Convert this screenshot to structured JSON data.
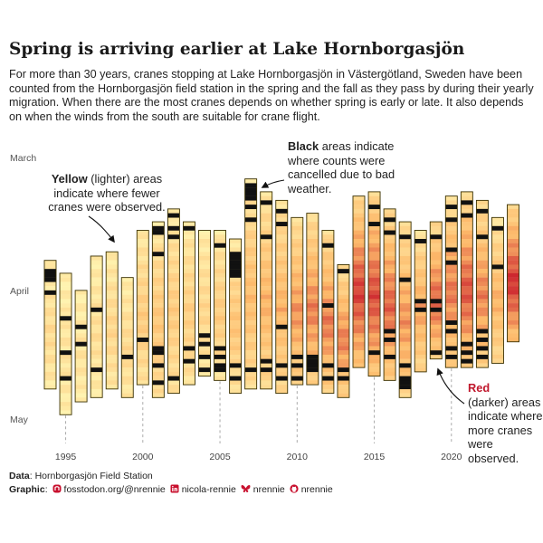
{
  "title": "Spring is arriving earlier at Lake Hornborgasjön",
  "subtitle": "For more than 30 years, cranes stopping at Lake Hornborgasjön in Västergötland, Sweden have been counted from the Hornborgasjön field station in the spring and the fall as they pass by during their yearly migration. When there are the most cranes depends on whether spring is early or late. It also depends on when the winds from the south are suitable for crane flight.",
  "annotations": {
    "yellow": {
      "bold": "Yellow",
      "text": " (lighter) areas indicate where fewer cranes were observed."
    },
    "black": {
      "bold": "Black",
      "text": " areas indicate where counts were cancelled due to bad weather."
    },
    "red": {
      "bold": "Red",
      "text": " (darker) areas indicate where more cranes were observed."
    }
  },
  "footer": {
    "data_key": "Data",
    "data_value": ": Hornborgasjön Field Station",
    "graphic_key": "Graphic",
    "mastodon": "fosstodon.org/@nrennie",
    "linkedin": "nicola-rennie",
    "bluesky": "nrennie",
    "github": "nrennie"
  },
  "colors": {
    "light": "#fff3b0",
    "mid": "#fdb96a",
    "dark": "#c91a2a",
    "cancelled": "#111111",
    "outline": "#3a3000",
    "red_label": "#c0182d",
    "footer_icons": "#c8102e"
  },
  "chart_data": {
    "type": "heatmap",
    "x_ticks": [
      1995,
      2000,
      2005,
      2010,
      2015,
      2020
    ],
    "y_ticks": [
      "March",
      "April",
      "May"
    ],
    "y_axis": "day of year, March (top) to May (bottom)",
    "value_scale": "relative crane count: 0 = fewer (yellow), 1 = more (red); cancelled = black",
    "series": [
      {
        "year": 1994,
        "start": "Mar 25",
        "end": "Apr 23",
        "intensity": 0.18,
        "cancelled": [
          "Mar 27",
          "Mar 28",
          "Mar 29",
          "Apr 1"
        ]
      },
      {
        "year": 1995,
        "start": "Mar 28",
        "end": "Apr 29",
        "intensity": 0.12,
        "cancelled": [
          "Apr 7",
          "Apr 15",
          "Apr 21"
        ]
      },
      {
        "year": 1996,
        "start": "Apr 1",
        "end": "Apr 26",
        "intensity": 0.12,
        "cancelled": [
          "Apr 9",
          "Apr 13"
        ]
      },
      {
        "year": 1997,
        "start": "Mar 24",
        "end": "Apr 25",
        "intensity": 0.16,
        "cancelled": [
          "Apr 5",
          "Apr 19"
        ]
      },
      {
        "year": 1998,
        "start": "Mar 23",
        "end": "Apr 23",
        "intensity": 0.22,
        "cancelled": []
      },
      {
        "year": 1999,
        "start": "Mar 29",
        "end": "Apr 25",
        "intensity": 0.2,
        "cancelled": [
          "Apr 16"
        ]
      },
      {
        "year": 2000,
        "start": "Mar 18",
        "end": "Apr 22",
        "intensity": 0.3,
        "cancelled": [
          "Apr 12"
        ]
      },
      {
        "year": 2001,
        "start": "Mar 16",
        "end": "Apr 25",
        "intensity": 0.33,
        "cancelled": [
          "Mar 17",
          "Mar 18",
          "Mar 23",
          "Apr 14",
          "Apr 15",
          "Apr 18",
          "Apr 22"
        ]
      },
      {
        "year": 2002,
        "start": "Mar 13",
        "end": "Apr 24",
        "intensity": 0.3,
        "cancelled": [
          "Mar 14",
          "Mar 17",
          "Mar 19",
          "Apr 21"
        ]
      },
      {
        "year": 2003,
        "start": "Mar 16",
        "end": "Apr 22",
        "intensity": 0.28,
        "cancelled": [
          "Mar 17",
          "Apr 14",
          "Apr 17"
        ]
      },
      {
        "year": 2004,
        "start": "Mar 18",
        "end": "Apr 20",
        "intensity": 0.22,
        "cancelled": [
          "Apr 11",
          "Apr 13",
          "Apr 16",
          "Apr 19"
        ]
      },
      {
        "year": 2005,
        "start": "Mar 18",
        "end": "Apr 21",
        "intensity": 0.3,
        "cancelled": [
          "Mar 21",
          "Apr 14",
          "Apr 16",
          "Apr 18",
          "Apr 19"
        ]
      },
      {
        "year": 2006,
        "start": "Mar 20",
        "end": "Apr 24",
        "intensity": 0.35,
        "cancelled": [
          "Mar 23",
          "Mar 24",
          "Mar 25",
          "Mar 26",
          "Mar 27",
          "Mar 28",
          "Apr 18",
          "Apr 21"
        ]
      },
      {
        "year": 2007,
        "start": "Mar 6",
        "end": "Apr 23",
        "intensity": 0.4,
        "cancelled": [
          "Mar 7",
          "Mar 8",
          "Mar 9",
          "Mar 10",
          "Mar 12",
          "Mar 15",
          "Apr 19"
        ]
      },
      {
        "year": 2008,
        "start": "Mar 9",
        "end": "Apr 23",
        "intensity": 0.45,
        "cancelled": [
          "Mar 11",
          "Mar 19",
          "Apr 17",
          "Apr 19"
        ]
      },
      {
        "year": 2009,
        "start": "Mar 11",
        "end": "Apr 24",
        "intensity": 0.45,
        "cancelled": [
          "Mar 13",
          "Mar 16",
          "Apr 9",
          "Apr 18",
          "Apr 21"
        ]
      },
      {
        "year": 2010,
        "start": "Mar 15",
        "end": "Apr 22",
        "intensity": 0.55,
        "cancelled": [
          "Apr 16",
          "Apr 18",
          "Apr 21"
        ]
      },
      {
        "year": 2011,
        "start": "Mar 14",
        "end": "Apr 22",
        "intensity": 0.6,
        "cancelled": [
          "Apr 16",
          "Apr 17",
          "Apr 18",
          "Apr 19"
        ]
      },
      {
        "year": 2012,
        "start": "Mar 18",
        "end": "Apr 24",
        "intensity": 0.62,
        "cancelled": [
          "Mar 21",
          "Apr 4",
          "Apr 18",
          "Apr 21"
        ]
      },
      {
        "year": 2013,
        "start": "Mar 26",
        "end": "Apr 25",
        "intensity": 0.6,
        "cancelled": [
          "Mar 27",
          "Apr 19",
          "Apr 21"
        ]
      },
      {
        "year": 2014,
        "start": "Mar 10",
        "end": "Apr 18",
        "intensity": 0.78,
        "cancelled": []
      },
      {
        "year": 2015,
        "start": "Mar 9",
        "end": "Apr 20",
        "intensity": 0.75,
        "cancelled": [
          "Mar 12",
          "Mar 16",
          "Apr 15"
        ]
      },
      {
        "year": 2016,
        "start": "Mar 13",
        "end": "Apr 21",
        "intensity": 0.68,
        "cancelled": [
          "Mar 15",
          "Mar 18",
          "Apr 10",
          "Apr 12",
          "Apr 16"
        ]
      },
      {
        "year": 2017,
        "start": "Mar 16",
        "end": "Apr 25",
        "intensity": 0.55,
        "cancelled": [
          "Mar 19",
          "Mar 29",
          "Apr 18",
          "Apr 21",
          "Apr 22",
          "Apr 23"
        ]
      },
      {
        "year": 2018,
        "start": "Mar 18",
        "end": "Apr 19",
        "intensity": 0.5,
        "cancelled": [
          "Mar 20",
          "Apr 3",
          "Apr 5"
        ]
      },
      {
        "year": 2019,
        "start": "Mar 16",
        "end": "Apr 16",
        "intensity": 0.68,
        "cancelled": [
          "Mar 19",
          "Apr 3",
          "Apr 5",
          "Apr 15"
        ]
      },
      {
        "year": 2020,
        "start": "Mar 10",
        "end": "Apr 18",
        "intensity": 0.62,
        "cancelled": [
          "Mar 12",
          "Mar 15",
          "Mar 22",
          "Mar 25",
          "Apr 8",
          "Apr 10",
          "Apr 14",
          "Apr 16"
        ]
      },
      {
        "year": 2021,
        "start": "Mar 9",
        "end": "Apr 18",
        "intensity": 0.72,
        "cancelled": [
          "Mar 11",
          "Mar 14",
          "Apr 13",
          "Apr 15",
          "Apr 17"
        ]
      },
      {
        "year": 2022,
        "start": "Mar 11",
        "end": "Apr 18",
        "intensity": 0.6,
        "cancelled": [
          "Mar 13",
          "Mar 19",
          "Apr 10",
          "Apr 12",
          "Apr 14",
          "Apr 16"
        ]
      },
      {
        "year": 2023,
        "start": "Mar 15",
        "end": "Apr 17",
        "intensity": 0.45,
        "cancelled": [
          "Mar 17",
          "Mar 26"
        ]
      },
      {
        "year": 2024,
        "start": "Mar 12",
        "end": "Apr 12",
        "intensity": 0.82,
        "cancelled": []
      }
    ]
  }
}
